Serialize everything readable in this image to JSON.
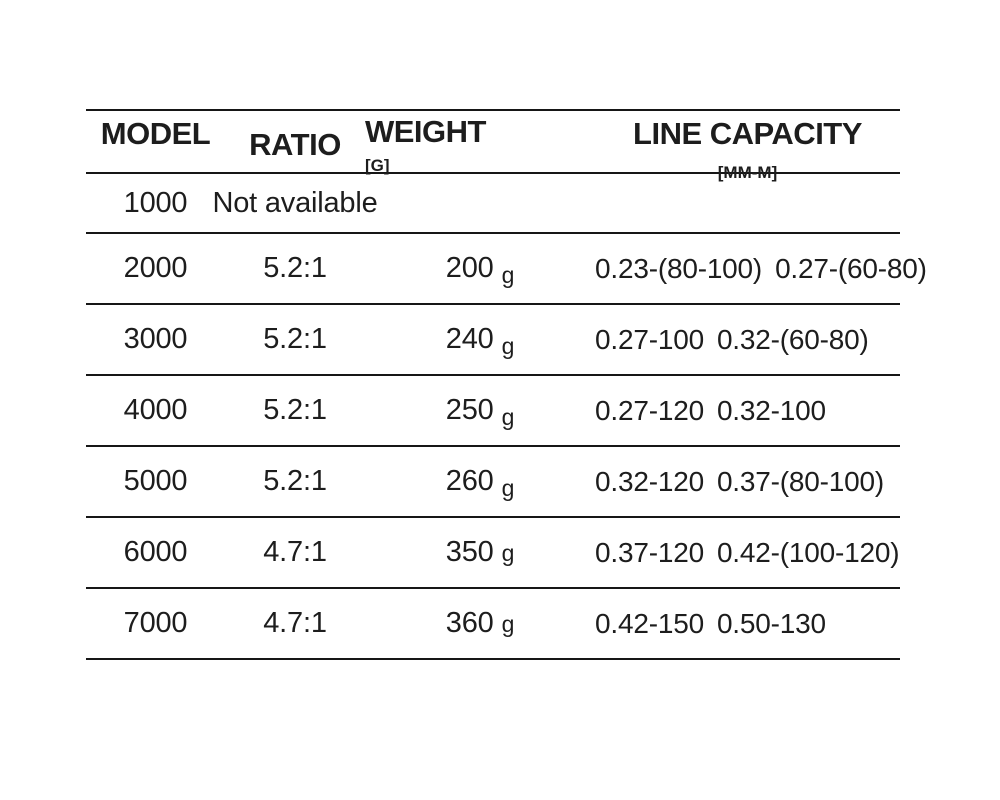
{
  "colors": {
    "background": "#ffffff",
    "text": "#1d1d1d",
    "line": "#161616"
  },
  "table": {
    "columns": [
      {
        "label": "MODEL",
        "sublabel": ""
      },
      {
        "label": "RATIO",
        "sublabel": ""
      },
      {
        "label": "WEIGHT",
        "sublabel": "[G]"
      },
      {
        "label": "LINE CAPACITY",
        "sublabel": "[MM-M]"
      }
    ],
    "rows": [
      {
        "model": "1000",
        "ratio": "Not available"
      },
      {
        "model": "2000",
        "ratio": "5.2:1",
        "weight": "200",
        "weight_unit": "g",
        "capacity_1": "0.23-(80-100)",
        "capacity_2": "0.27-(60-80)"
      },
      {
        "model": "3000",
        "ratio": "5.2:1",
        "weight": "240",
        "weight_unit": "g",
        "capacity_1": "0.27-100",
        "capacity_2": "0.32-(60-80)"
      },
      {
        "model": "4000",
        "ratio": "5.2:1",
        "weight": "250",
        "weight_unit": "g",
        "capacity_1": "0.27-120",
        "capacity_2": "0.32-100"
      },
      {
        "model": "5000",
        "ratio": "5.2:1",
        "weight": "260",
        "weight_unit": "g",
        "capacity_1": "0.32-120",
        "capacity_2": "0.37-(80-100)"
      },
      {
        "model": "6000",
        "ratio": "4.7:1",
        "weight": "350",
        "weight_unit": "g",
        "capacity_1": "0.37-120",
        "capacity_2": "0.42-(100-120)"
      },
      {
        "model": "7000",
        "ratio": "4.7:1",
        "weight": "360",
        "weight_unit": "g",
        "capacity_1": "0.42-150",
        "capacity_2": "0.50-130"
      }
    ]
  }
}
